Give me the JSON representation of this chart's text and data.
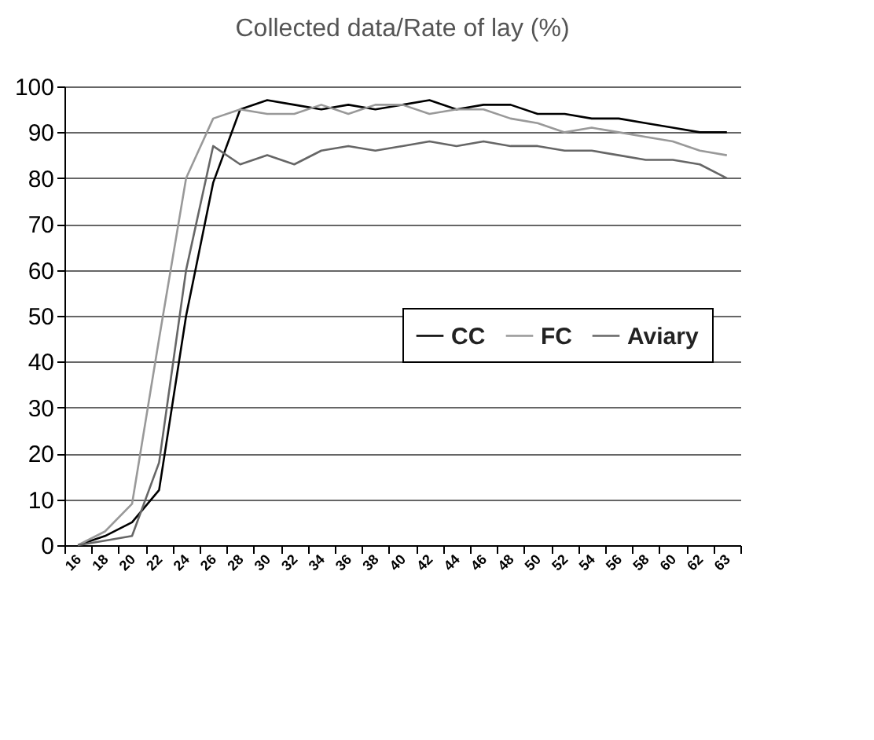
{
  "chart_data": {
    "type": "line",
    "title": "Collected data/Rate of lay (%)",
    "categories": [
      "16",
      "18",
      "20",
      "22",
      "24",
      "26",
      "28",
      "30",
      "32",
      "34",
      "36",
      "38",
      "40",
      "42",
      "44",
      "46",
      "48",
      "50",
      "52",
      "54",
      "56",
      "58",
      "60",
      "62",
      "63"
    ],
    "series": [
      {
        "name": "CC",
        "color": "#000000",
        "values": [
          0,
          2,
          5,
          12,
          50,
          79,
          95,
          97,
          96,
          95,
          96,
          95,
          96,
          97,
          95,
          96,
          96,
          94,
          94,
          93,
          93,
          92,
          91,
          90,
          90
        ]
      },
      {
        "name": "FC",
        "color": "#999999",
        "values": [
          0,
          3,
          9,
          45,
          80,
          93,
          95,
          94,
          94,
          96,
          94,
          96,
          96,
          94,
          95,
          95,
          93,
          92,
          90,
          91,
          90,
          89,
          88,
          86,
          85
        ]
      },
      {
        "name": "Aviary",
        "color": "#666666",
        "values": [
          0,
          1,
          2,
          18,
          60,
          87,
          83,
          85,
          83,
          86,
          87,
          86,
          87,
          88,
          87,
          88,
          87,
          87,
          86,
          86,
          85,
          84,
          84,
          83,
          80
        ]
      }
    ],
    "ylim": [
      0,
      100
    ],
    "yticks": [
      0,
      10,
      20,
      30,
      40,
      50,
      60,
      70,
      80,
      90,
      100
    ],
    "grid": "y",
    "legend": "right",
    "marker": "none",
    "line_style": "solid"
  }
}
